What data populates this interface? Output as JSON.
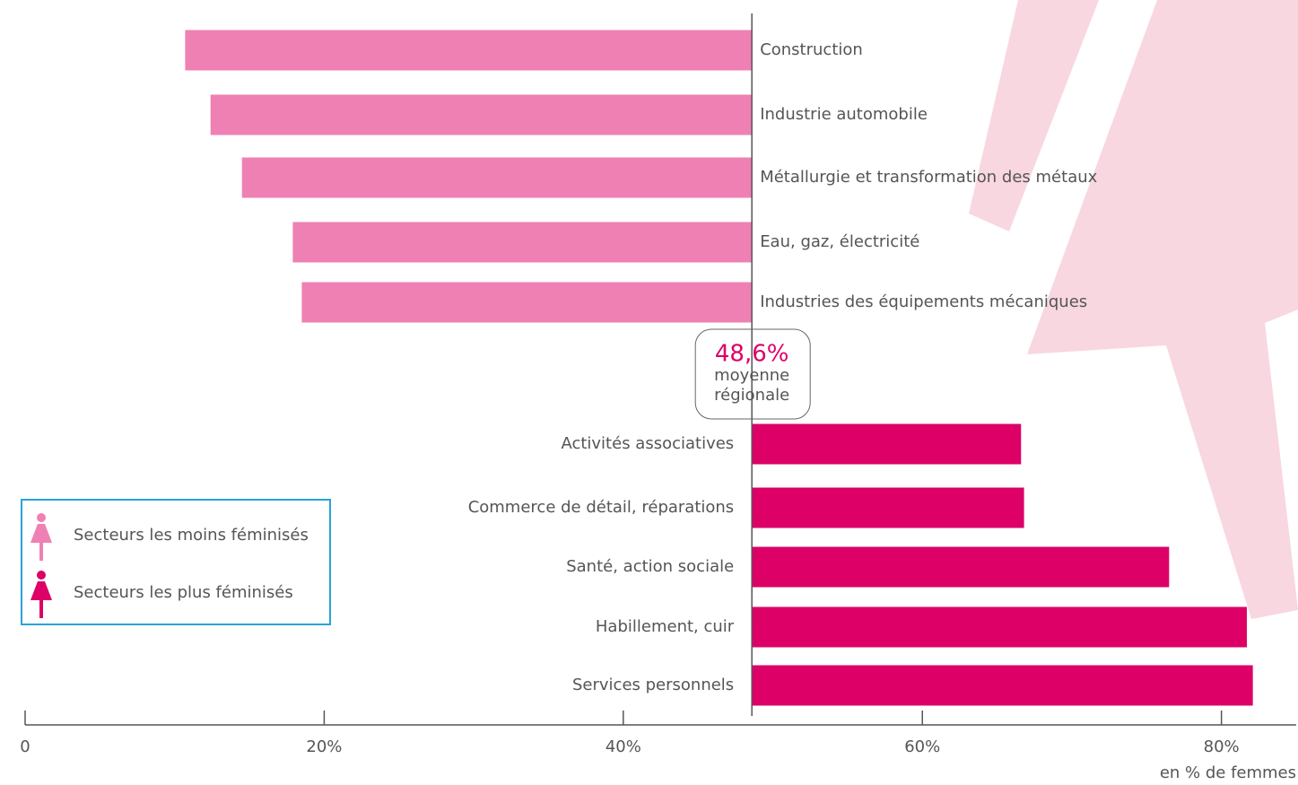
{
  "chart_data": {
    "type": "diverging-bar",
    "average": {
      "value": 48.6,
      "label": "48,6%"
    },
    "average_label": [
      "moyenne",
      "régionale"
    ],
    "series": [
      {
        "name": "Secteurs les moins féminisés",
        "color": "#ef80b3",
        "categories": [
          "Construction",
          "Industrie automobile",
          "Métallurgie et transformation des métaux",
          "Eau, gaz, électricité",
          "Industries des équipements mécaniques"
        ],
        "values": [
          10.7,
          12.4,
          14.5,
          17.9,
          18.5
        ]
      },
      {
        "name": "Secteurs les plus féminisés",
        "color": "#dc0067",
        "categories": [
          "Activités associatives",
          "Commerce de détail, réparations",
          "Santé, action sociale",
          "Habillement, cuir",
          "Services personnels"
        ],
        "values": [
          66.6,
          66.8,
          76.5,
          81.7,
          82.1
        ]
      }
    ],
    "xlim": [
      0,
      85
    ],
    "xticks": [
      0,
      {
        "value": 20,
        "label": "20%"
      },
      {
        "value": 40,
        "label": "40%"
      },
      {
        "value": 60,
        "label": "60%"
      },
      {
        "value": 80,
        "label": "80%"
      }
    ],
    "xlabel": "en % de femmes"
  }
}
